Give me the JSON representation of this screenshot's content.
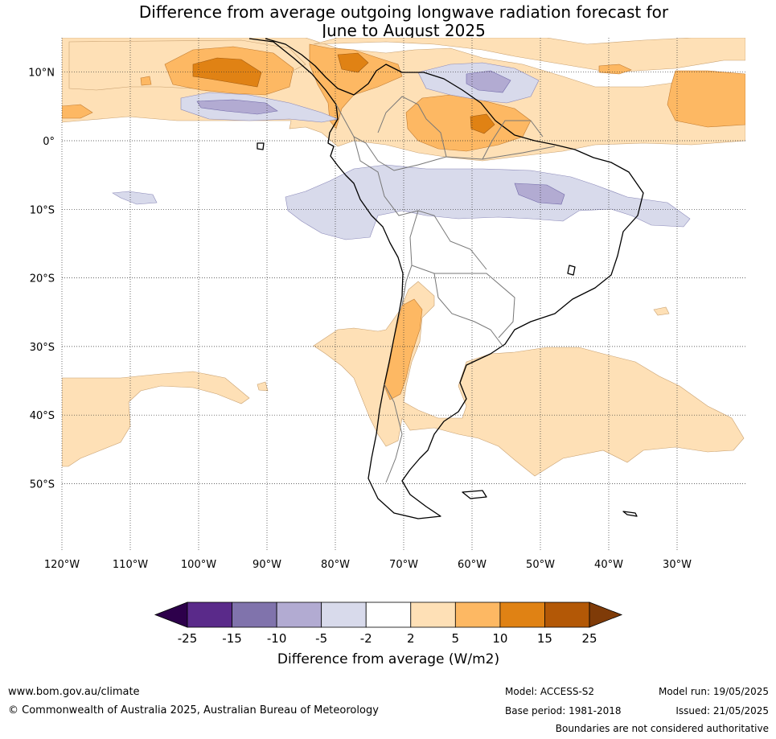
{
  "title": {
    "line1": "Difference from average outgoing longwave radiation forecast for",
    "line2": "June to August 2025"
  },
  "map": {
    "lat_ticks": [
      "10°N",
      "0°",
      "10°S",
      "20°S",
      "30°S",
      "40°S",
      "50°S"
    ],
    "lon_ticks": [
      "120°W",
      "110°W",
      "100°W",
      "90°W",
      "80°W",
      "70°W",
      "60°W",
      "50°W",
      "40°W",
      "30°W"
    ],
    "extent": {
      "lon_min": -120,
      "lon_max": -20,
      "lat_min": -60,
      "lat_max": 15
    }
  },
  "colorbar": {
    "ticks": [
      "-25",
      "-15",
      "-10",
      "-5",
      "-2",
      "2",
      "5",
      "10",
      "15",
      "25"
    ],
    "label": "Difference from average (W/m2)",
    "colors": {
      "below_min": "#2d004b",
      "m25_m15": "#5a2a8a",
      "m15_m10": "#8073ac",
      "m10_m5": "#b2abd2",
      "m5_m2": "#d8daeb",
      "m2_p2": "#ffffff",
      "p2_p5": "#fee0b6",
      "p5_p10": "#fdb863",
      "p10_p15": "#e08214",
      "p15_p25": "#b35806",
      "above_max": "#7f3b08"
    }
  },
  "footer": {
    "website": "www.bom.gov.au/climate",
    "copyright": "© Commonwealth of Australia 2025, Australian Bureau of Meteorology",
    "model": "Model: ACCESS-S2",
    "base_period": "Base period: 1981-2018",
    "model_run": "Model run: 19/05/2025",
    "issued": "Issued: 21/05/2025",
    "disclaimer": "Boundaries are not considered authoritative"
  }
}
